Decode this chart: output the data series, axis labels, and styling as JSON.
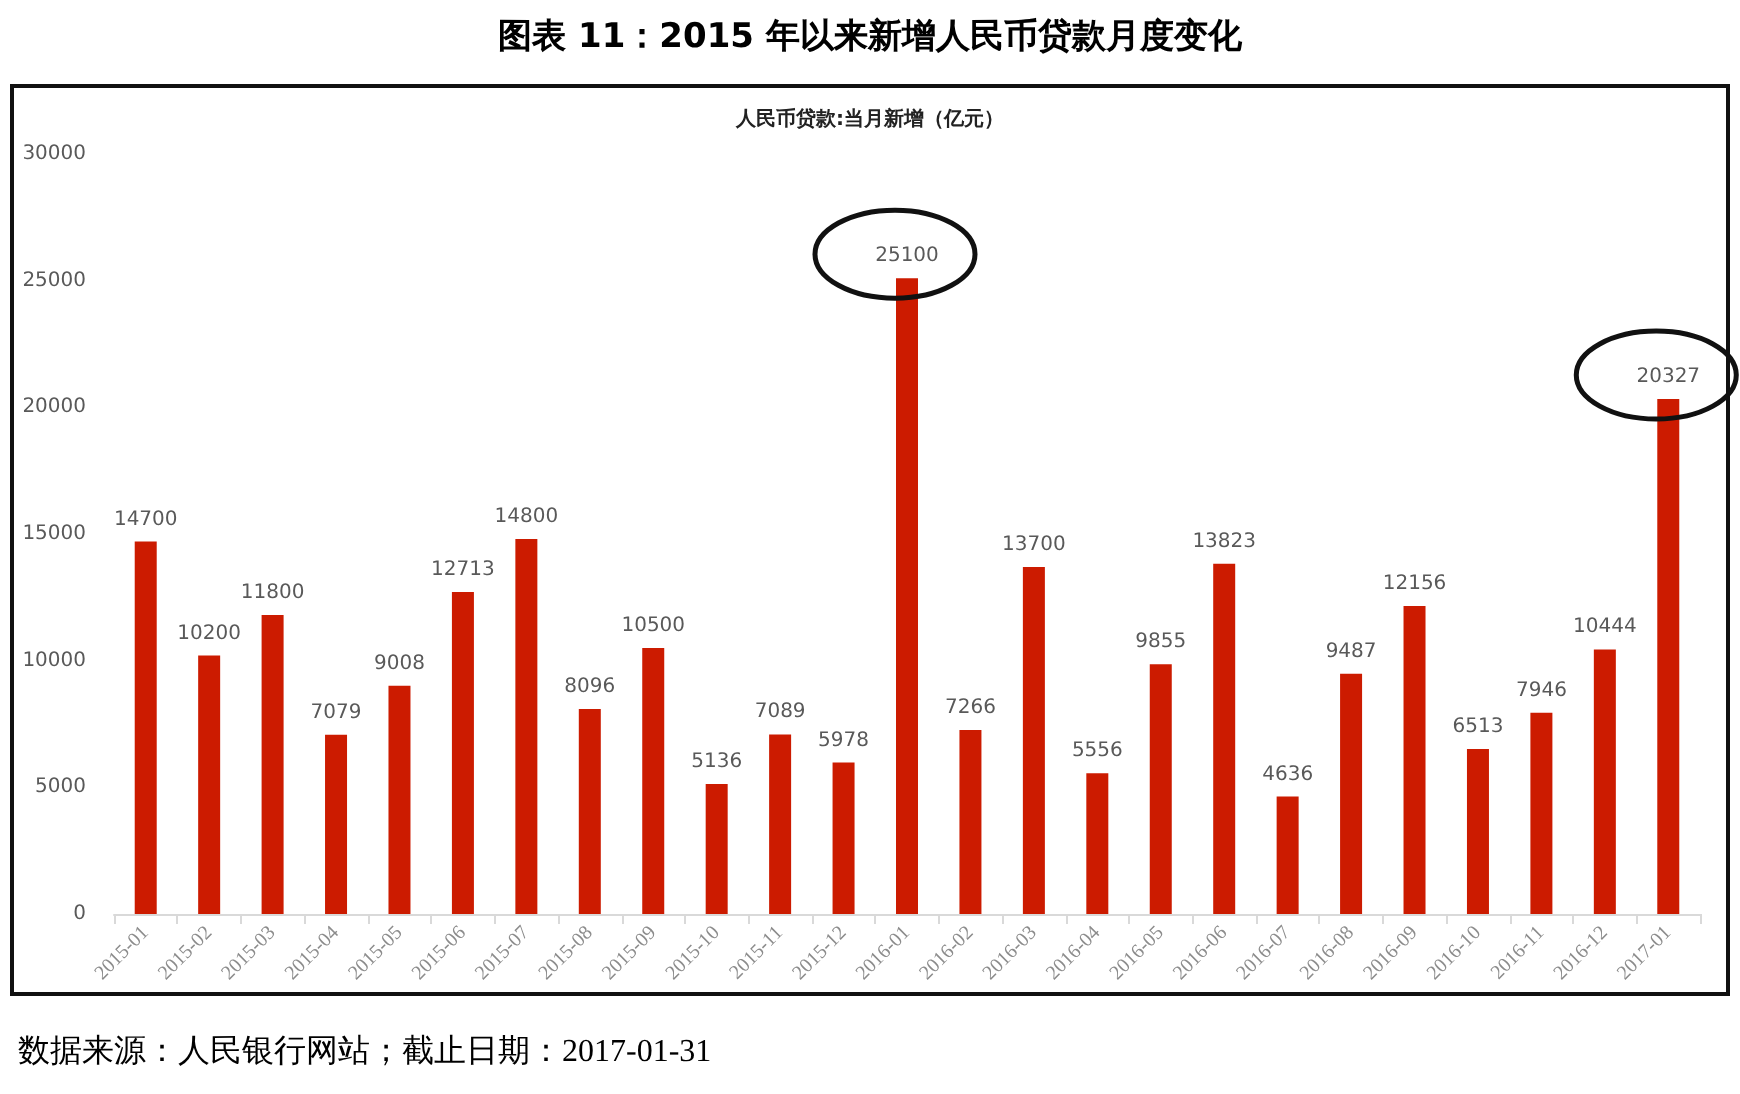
{
  "chart_data": {
    "type": "bar",
    "title": "图表 11：2015 年以来新增人民币贷款月度变化",
    "subtitle": "人民币贷款:当月新增（亿元）",
    "categories": [
      "2015-01",
      "2015-02",
      "2015-03",
      "2015-04",
      "2015-05",
      "2015-06",
      "2015-07",
      "2015-08",
      "2015-09",
      "2015-10",
      "2015-11",
      "2015-12",
      "2016-01",
      "2016-02",
      "2016-03",
      "2016-04",
      "2016-05",
      "2016-06",
      "2016-07",
      "2016-08",
      "2016-09",
      "2016-10",
      "2016-11",
      "2016-12",
      "2017-01"
    ],
    "values": [
      14700,
      10200,
      11800,
      7079,
      9008,
      12713,
      14800,
      8096,
      10500,
      5136,
      7089,
      5978,
      25100,
      7266,
      13700,
      5556,
      9855,
      13823,
      4636,
      9487,
      12156,
      6513,
      7946,
      10444,
      20327
    ],
    "color": "#cc1b00",
    "ylim": [
      0,
      30000
    ],
    "yticks": [
      0,
      5000,
      10000,
      15000,
      20000,
      25000,
      30000
    ],
    "grid": false,
    "data_labels": true,
    "annotations": [
      "数据来源：人民银行网站；截止日期：2017-01-31"
    ]
  }
}
